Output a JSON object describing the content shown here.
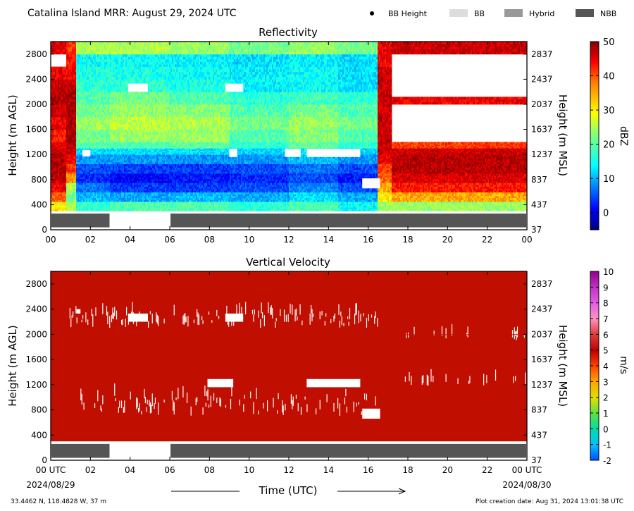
{
  "title": "Catalina Island MRR:  August 29, 2024 UTC",
  "legend": [
    {
      "label": "BB Height",
      "kind": "marker",
      "color": "#000000"
    },
    {
      "label": "BB",
      "kind": "swatch",
      "color": "#dddddd"
    },
    {
      "label": "Hybrid",
      "kind": "swatch",
      "color": "#999999"
    },
    {
      "label": "NBB",
      "kind": "swatch",
      "color": "#555555"
    }
  ],
  "footer": {
    "location": "33.4462 N, 118.4828 W, 37 m",
    "creation": "Plot creation date: Aug 31, 2024 13:01:38 UTC",
    "xlabel": "Time (UTC)",
    "start_date": "2024/08/29",
    "end_date": "2024/08/30"
  },
  "chart_data": [
    {
      "type": "heatmap",
      "title": "Reflectivity",
      "ylabel": "Height (m AGL)",
      "ylabel_right": "Height (m MSL)",
      "colorbar_label": "dBZ",
      "colorbar_range": [
        -5,
        50
      ],
      "colorbar_ticks": [
        "0",
        "10",
        "20",
        "30",
        "40",
        "50"
      ],
      "xlim": [
        0,
        24
      ],
      "ylim": [
        0,
        3000
      ],
      "x_ticks": [
        "00",
        "02",
        "04",
        "06",
        "08",
        "10",
        "12",
        "14",
        "16",
        "18",
        "20",
        "22",
        "00"
      ],
      "y_ticks": [
        "0",
        "400",
        "800",
        "1200",
        "1600",
        "2000",
        "2400",
        "2800"
      ],
      "y_ticks_right": [
        "37",
        "437",
        "837",
        "1237",
        "1637",
        "2037",
        "2437",
        "2837"
      ],
      "data_bottom_m": 300,
      "data_top_m": 3000,
      "nbb_intervals_utc": [
        [
          0,
          3
        ],
        [
          6,
          24
        ]
      ],
      "height_bins_m": [
        300,
        450,
        600,
        750,
        900,
        1050,
        1200,
        1300,
        1400,
        1600,
        1800,
        2000,
        2200,
        2400,
        2600,
        2800,
        3000
      ],
      "time_segments": [
        {
          "t": [
            0,
            0.8
          ],
          "dbz_by_height": [
            30,
            38,
            44,
            46,
            47,
            47,
            46,
            45,
            42,
            44,
            46,
            47,
            46,
            44,
            null,
            45
          ]
        },
        {
          "t": [
            0.8,
            1.3
          ],
          "dbz_by_height": [
            25,
            22,
            25,
            35,
            40,
            44,
            46,
            47,
            48,
            48,
            48,
            48,
            46,
            44,
            42,
            40
          ]
        },
        {
          "t": [
            1.3,
            3
          ],
          "dbz_by_height": [
            18,
            12,
            8,
            4,
            6,
            10,
            14,
            20,
            22,
            24,
            22,
            20,
            18,
            17,
            16,
            25
          ]
        },
        {
          "t": [
            3,
            6
          ],
          "dbz_by_height": [
            20,
            11,
            5,
            2,
            5,
            10,
            14,
            20,
            24,
            26,
            24,
            22,
            18,
            17,
            16,
            25
          ]
        },
        {
          "t": [
            6,
            9
          ],
          "dbz_by_height": [
            20,
            12,
            5,
            3,
            5,
            10,
            14,
            21,
            24,
            25,
            23,
            20,
            17,
            16,
            15,
            24
          ]
        },
        {
          "t": [
            9,
            12
          ],
          "dbz_by_height": [
            18,
            11,
            6,
            4,
            6,
            10,
            13,
            18,
            20,
            22,
            20,
            18,
            15,
            15,
            14,
            22
          ]
        },
        {
          "t": [
            12,
            14.5
          ],
          "dbz_by_height": [
            20,
            14,
            9,
            6,
            8,
            12,
            15,
            21,
            23,
            24,
            22,
            19,
            16,
            16,
            15,
            24
          ]
        },
        {
          "t": [
            14.5,
            16.5
          ],
          "dbz_by_height": [
            16,
            11,
            6,
            3,
            6,
            10,
            13,
            18,
            20,
            22,
            20,
            18,
            14,
            14,
            14,
            22
          ]
        },
        {
          "t": [
            16.5,
            17.2
          ],
          "dbz_by_height": [
            24,
            30,
            34,
            38,
            40,
            44,
            46,
            46,
            46,
            46,
            46,
            46,
            46,
            46,
            44,
            44
          ]
        },
        {
          "t": [
            17.2,
            24
          ],
          "dbz_by_height": [
            24,
            34,
            42,
            45,
            47,
            47,
            46,
            40,
            null,
            null,
            null,
            44,
            null,
            null,
            null,
            46
          ]
        }
      ]
    },
    {
      "type": "heatmap",
      "title": "Vertical Velocity",
      "ylabel": "Height (m AGL)",
      "ylabel_right": "Height (m MSL)",
      "colorbar_label": "m/s",
      "colorbar_range": [
        -2,
        10
      ],
      "colorbar_ticks": [
        "-2",
        "-1",
        "0",
        "1",
        "2",
        "3",
        "4",
        "5",
        "6",
        "7",
        "8",
        "9",
        "10"
      ],
      "xlim": [
        0,
        24
      ],
      "ylim": [
        0,
        3000
      ],
      "x_ticks": [
        "00 UTC",
        "02",
        "04",
        "06",
        "08",
        "10",
        "12",
        "14",
        "16",
        "18",
        "20",
        "22",
        "00 UTC"
      ],
      "y_ticks": [
        "0",
        "400",
        "800",
        "1200",
        "1600",
        "2000",
        "2400",
        "2800"
      ],
      "y_ticks_right": [
        "37",
        "437",
        "837",
        "1237",
        "1637",
        "2037",
        "2437",
        "2837"
      ],
      "data_bottom_m": 300,
      "data_top_m": 3000,
      "velocity_ms": 6,
      "nbb_intervals_utc": [
        [
          0,
          3
        ],
        [
          6,
          24
        ]
      ]
    }
  ]
}
